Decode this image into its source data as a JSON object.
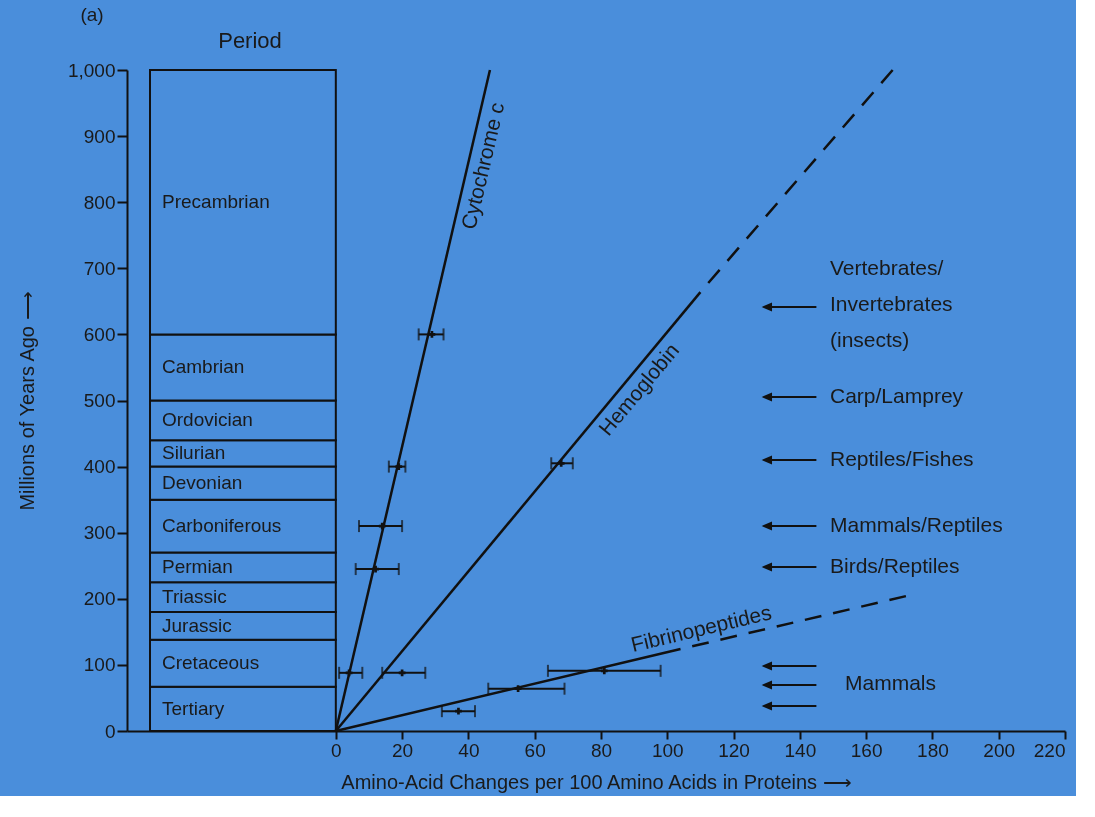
{
  "chart_data": {
    "type": "line",
    "title": "(a)",
    "xlabel": "Amino-Acid Changes per 100 Amino Acids in Proteins ⟶",
    "ylabel": "Millions of Years Ago ⟶",
    "xlim": [
      -63,
      220
    ],
    "xticks": [
      0,
      20,
      40,
      60,
      80,
      100,
      120,
      140,
      160,
      180,
      200,
      220
    ],
    "ylim": [
      0,
      1000
    ],
    "yticks": [
      0,
      100,
      200,
      300,
      400,
      500,
      600,
      700,
      800,
      900,
      {
        "value": 1000,
        "label": "1,000"
      }
    ],
    "series": [
      {
        "name": "Cytochrome c",
        "color": "#111111",
        "line_style": "solid",
        "x": [
          0,
          46.5
        ],
        "values": [
          0,
          1000
        ]
      },
      {
        "name": "Hemoglobin",
        "color": "#111111",
        "line_style": "solid",
        "x": [
          0,
          110
        ],
        "values": [
          0,
          664
        ]
      },
      {
        "color": "#111111",
        "line_style": "dashed",
        "x": [
          110,
          168
        ],
        "values": [
          664,
          1000
        ]
      },
      {
        "name": "Fibrinopeptides",
        "color": "#111111",
        "line_style": "solid",
        "x": [
          0,
          104
        ],
        "values": [
          0,
          124
        ]
      },
      {
        "color": "#111111",
        "line_style": "dashed",
        "x": [
          104,
          172
        ],
        "values": [
          124,
          204
        ]
      },
      {
        "type": "scatter",
        "marker": "cross",
        "color": "#111111",
        "x": [
          29,
          19,
          14,
          12,
          4,
          20,
          68,
          81,
          55,
          37
        ],
        "values": [
          600,
          400,
          310,
          245,
          88,
          88,
          405,
          91,
          64,
          30
        ],
        "xerrors": [
          [
            25,
            32.5
          ],
          [
            16,
            21
          ],
          [
            7,
            20
          ],
          [
            6,
            19
          ],
          [
            1,
            8
          ],
          [
            14,
            27
          ],
          [
            65,
            71.5
          ],
          [
            64,
            98
          ],
          [
            46,
            69
          ],
          [
            32,
            42
          ]
        ]
      }
    ],
    "bands": [
      {
        "axis": "y",
        "from": 0,
        "to": 67,
        "label": "Tertiary"
      },
      {
        "axis": "y",
        "from": 67,
        "to": 138,
        "label": "Cretaceous"
      },
      {
        "axis": "y",
        "from": 138,
        "to": 180,
        "label": "Jurassic"
      },
      {
        "axis": "y",
        "from": 180,
        "to": 225,
        "label": "Triassic"
      },
      {
        "axis": "y",
        "from": 225,
        "to": 270,
        "label": "Permian"
      },
      {
        "axis": "y",
        "from": 270,
        "to": 350,
        "label": "Carboniferous"
      },
      {
        "axis": "y",
        "from": 350,
        "to": 400,
        "label": "Devonian"
      },
      {
        "axis": "y",
        "from": 400,
        "to": 440,
        "label": "Silurian"
      },
      {
        "axis": "y",
        "from": 440,
        "to": 500,
        "label": "Ordovician"
      },
      {
        "axis": "y",
        "from": 500,
        "to": 600,
        "label": "Cambrian"
      },
      {
        "axis": "y",
        "from": 600,
        "to": 1000,
        "label": "Precambrian"
      }
    ],
    "annotations": [
      "Period",
      "Vertebrates/\nInvertebrates\n(insects)",
      "Carp/Lamprey",
      "Reptiles/Fishes",
      "Mammals/Reptiles",
      "Birds/Reptiles",
      "Mammals"
    ]
  }
}
